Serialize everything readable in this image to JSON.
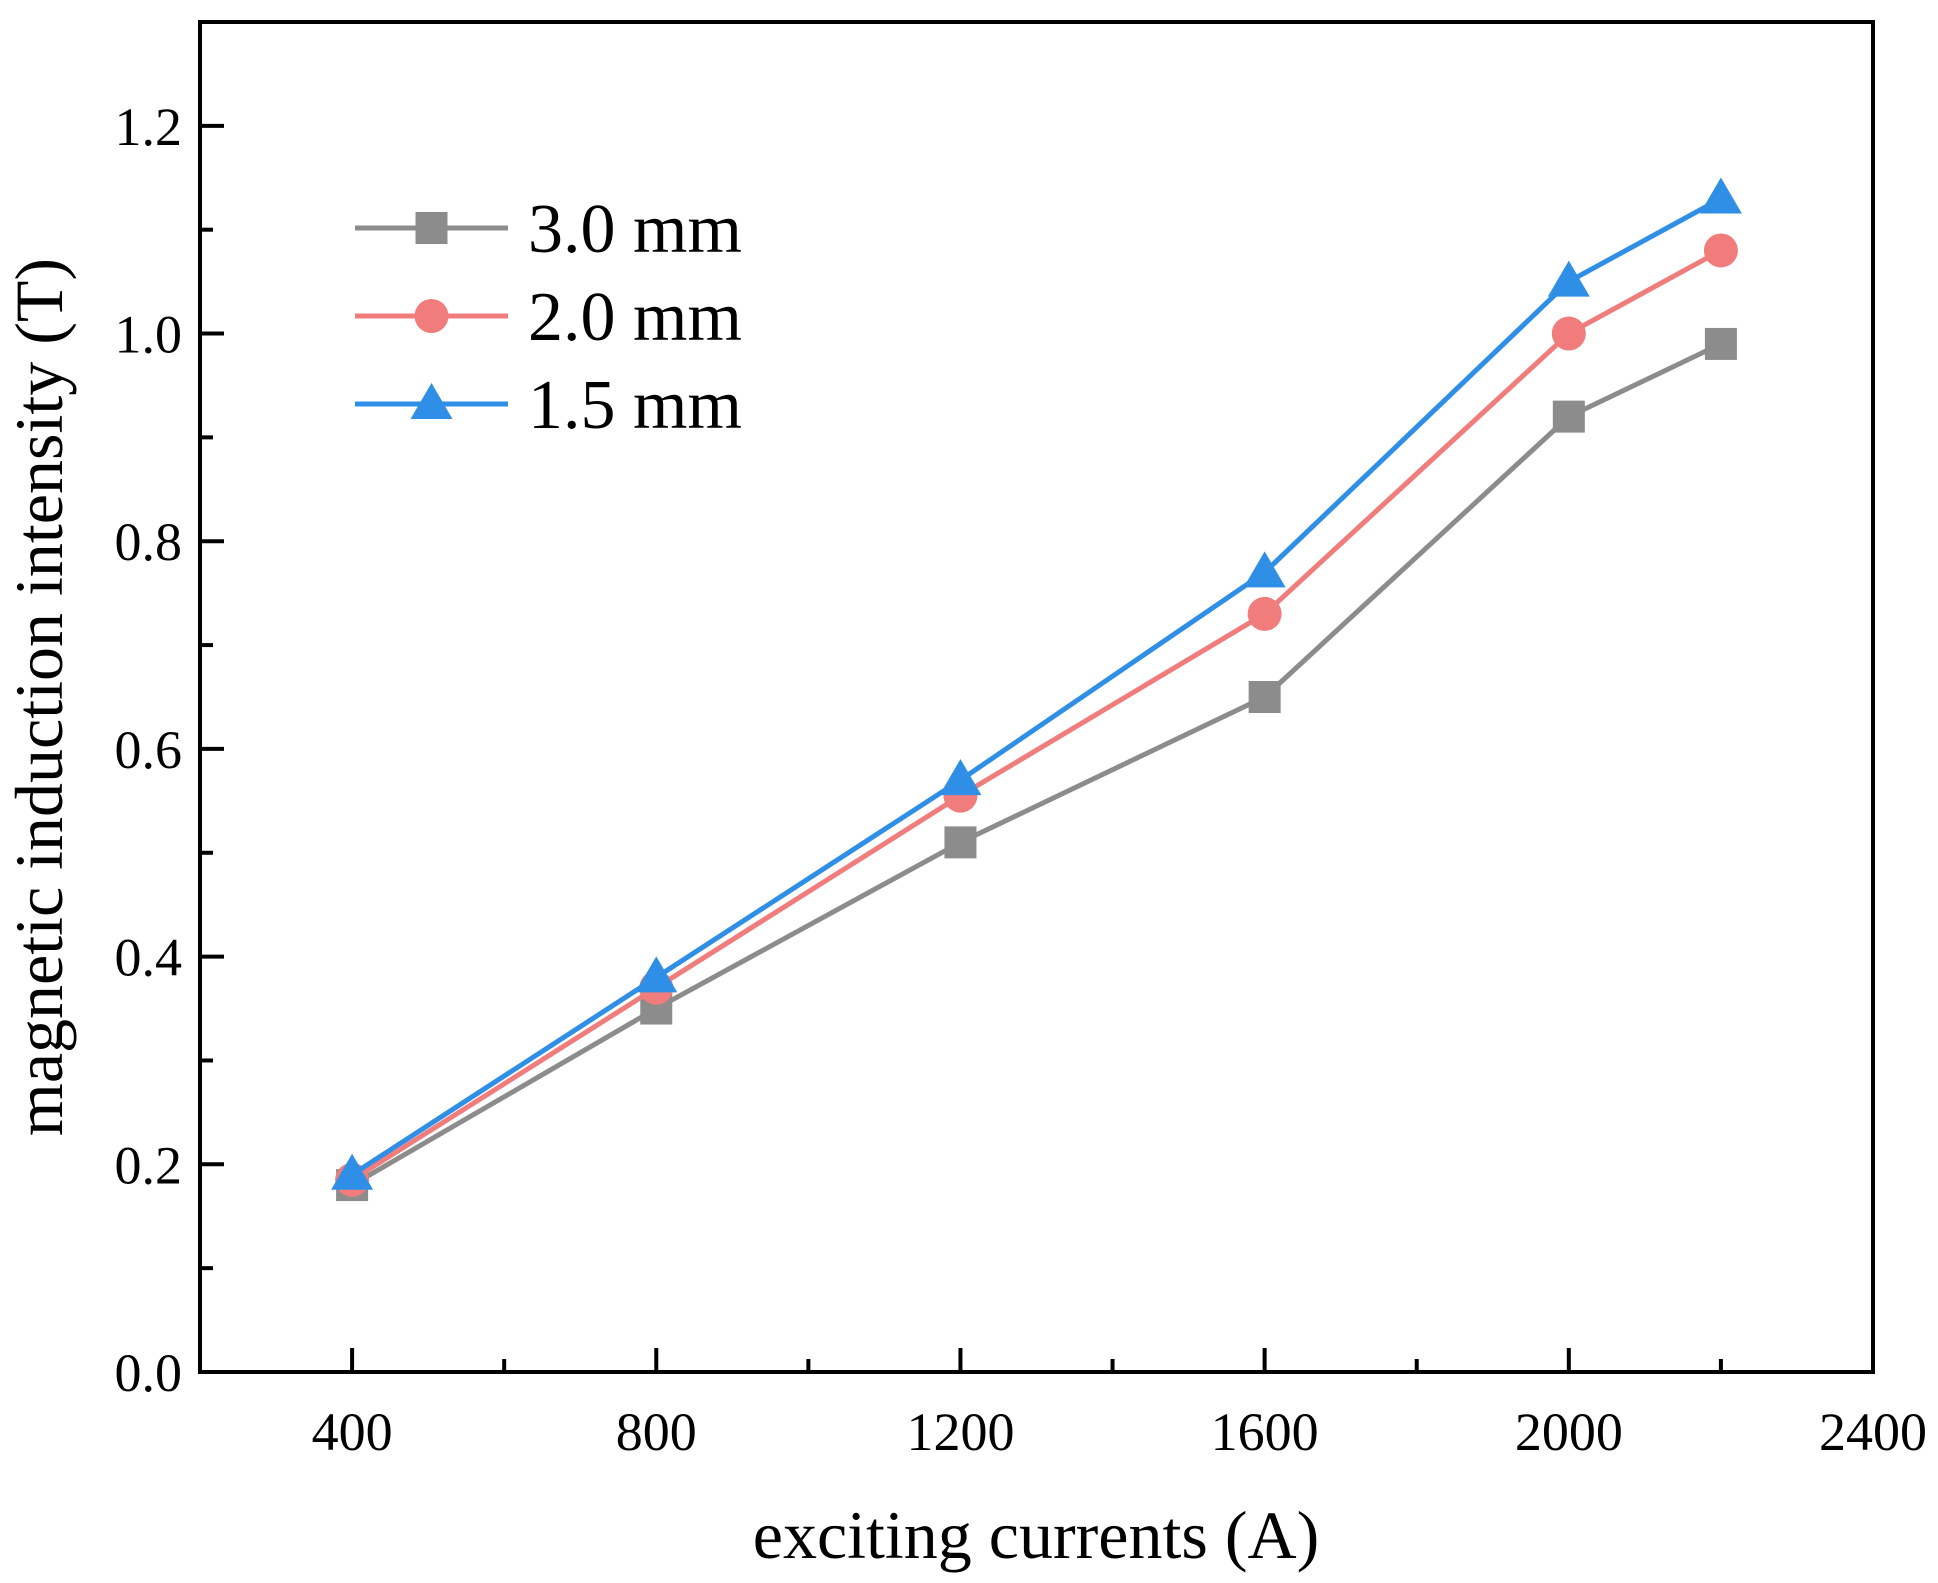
{
  "chart_data": {
    "type": "line",
    "title": "",
    "xlabel": "exciting currents (A)",
    "ylabel": "magnetic induction intensity (T)",
    "xlim": [
      200,
      2400
    ],
    "ylim": [
      0.0,
      1.3
    ],
    "x_ticks": [
      400,
      800,
      1200,
      1600,
      2000,
      2400
    ],
    "x_tick_labels": [
      "400",
      "800",
      "1200",
      "1600",
      "2000",
      "2400"
    ],
    "y_ticks": [
      0.0,
      0.2,
      0.4,
      0.6,
      0.8,
      1.0,
      1.2
    ],
    "y_tick_labels": [
      "0.0",
      "0.2",
      "0.4",
      "0.6",
      "0.8",
      "1.0",
      "1.2"
    ],
    "x_minor_ticks": [
      600,
      1000,
      1400,
      1800,
      2200
    ],
    "y_minor_ticks": [
      0.1,
      0.3,
      0.5,
      0.7,
      0.9,
      1.1
    ],
    "grid": false,
    "legend_position": "top-left",
    "x": [
      400,
      800,
      1200,
      1600,
      2000,
      2200
    ],
    "series": [
      {
        "name": "3.0 mm",
        "marker": "square",
        "color": "#8c8c8c",
        "values": [
          0.18,
          0.35,
          0.51,
          0.65,
          0.92,
          0.99
        ]
      },
      {
        "name": "2.0 mm",
        "marker": "circle",
        "color": "#f07c7c",
        "values": [
          0.185,
          0.37,
          0.555,
          0.73,
          1.0,
          1.08
        ]
      },
      {
        "name": "1.5 mm",
        "marker": "triangle",
        "color": "#2f8fe6",
        "values": [
          0.19,
          0.38,
          0.57,
          0.77,
          1.05,
          1.13
        ]
      }
    ]
  }
}
